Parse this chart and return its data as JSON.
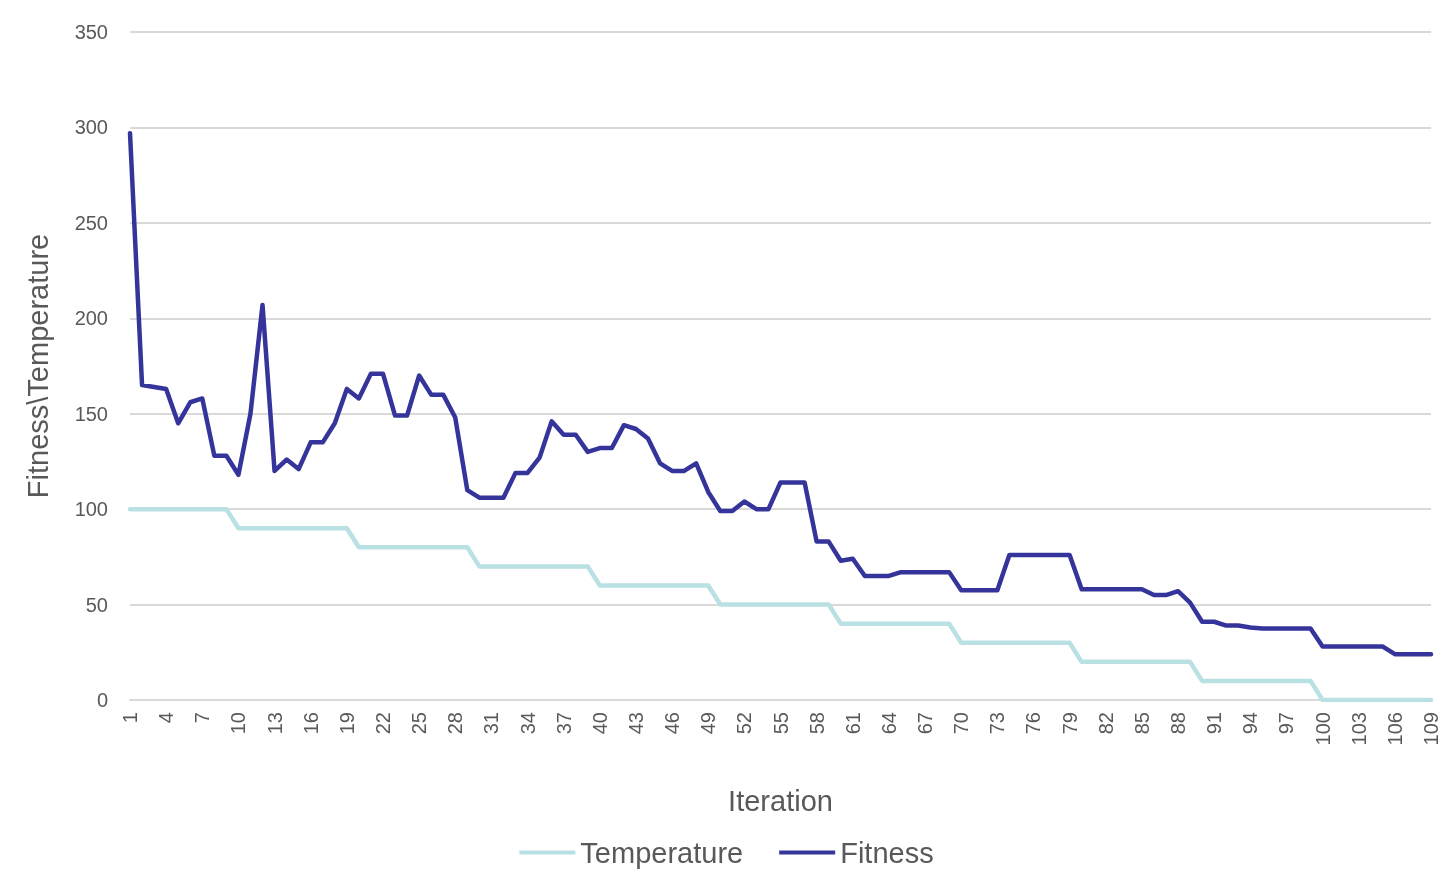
{
  "chart_data": {
    "type": "line",
    "xlabel": "Iteration",
    "ylabel": "Fitness\\Temperature",
    "categories": [
      "1",
      null,
      null,
      "4",
      null,
      null,
      "7",
      null,
      null,
      "10",
      null,
      null,
      "13",
      null,
      null,
      "16",
      null,
      null,
      "19",
      null,
      null,
      "22",
      null,
      null,
      "25",
      null,
      null,
      "28",
      null,
      null,
      "31",
      null,
      null,
      "34",
      null,
      null,
      "37",
      null,
      null,
      "40",
      null,
      null,
      "43",
      null,
      null,
      "46",
      null,
      null,
      "49",
      null,
      null,
      "52",
      null,
      null,
      "55",
      null,
      null,
      "58",
      null,
      null,
      "61",
      null,
      null,
      "64",
      null,
      null,
      "67",
      null,
      null,
      "70",
      null,
      null,
      "73",
      null,
      null,
      "76",
      null,
      null,
      "79",
      null,
      null,
      "82",
      null,
      null,
      "85",
      null,
      null,
      "88",
      null,
      null,
      "91",
      null,
      null,
      "94",
      null,
      null,
      "97",
      null,
      null,
      "100",
      null,
      null,
      "103",
      null,
      null,
      "106",
      null,
      null,
      "109"
    ],
    "series": [
      {
        "name": "Temperature",
        "color": "#b9e0e3",
        "values": [
          100,
          100,
          100,
          100,
          100,
          100,
          100,
          100,
          100,
          90,
          90,
          90,
          90,
          90,
          90,
          90,
          90,
          90,
          90,
          80,
          80,
          80,
          80,
          80,
          80,
          80,
          80,
          80,
          80,
          70,
          70,
          70,
          70,
          70,
          70,
          70,
          70,
          70,
          70,
          60,
          60,
          60,
          60,
          60,
          60,
          60,
          60,
          60,
          60,
          50,
          50,
          50,
          50,
          50,
          50,
          50,
          50,
          50,
          50,
          40,
          40,
          40,
          40,
          40,
          40,
          40,
          40,
          40,
          40,
          30,
          30,
          30,
          30,
          30,
          30,
          30,
          30,
          30,
          30,
          20,
          20,
          20,
          20,
          20,
          20,
          20,
          20,
          20,
          20,
          10,
          10,
          10,
          10,
          10,
          10,
          10,
          10,
          10,
          10,
          0,
          0,
          0,
          0,
          0,
          0,
          0,
          0,
          0,
          0
        ]
      },
      {
        "name": "Fitness",
        "color": "#34349a",
        "values": [
          297,
          165,
          164,
          163,
          145,
          156,
          158,
          128,
          128,
          118,
          150,
          207,
          120,
          126,
          121,
          135,
          135,
          145,
          163,
          158,
          171,
          171,
          149,
          149,
          170,
          160,
          160,
          148,
          110,
          106,
          106,
          106,
          119,
          119,
          127,
          146,
          139,
          139,
          130,
          132,
          132,
          144,
          142,
          137,
          124,
          120,
          120,
          124,
          109,
          99,
          99,
          104,
          100,
          100,
          114,
          114,
          114,
          83,
          83,
          73,
          74,
          65,
          65,
          65,
          67,
          67,
          67,
          67,
          67,
          57.5,
          57.5,
          57.5,
          57.5,
          76,
          76,
          76,
          76,
          76,
          76,
          58,
          58,
          58,
          58,
          58,
          58,
          55,
          55,
          57,
          51,
          41,
          41,
          39,
          39,
          38,
          37.5,
          37.5,
          37.5,
          37.5,
          37.5,
          28,
          28,
          28,
          28,
          28,
          28,
          24,
          24,
          24,
          24
        ]
      }
    ],
    "ylim": [
      0,
      350
    ],
    "yticks": [
      0,
      50,
      100,
      150,
      200,
      250,
      300,
      350
    ],
    "grid": "y",
    "legend": "bottom",
    "marker": "none",
    "line_style": "solid"
  }
}
